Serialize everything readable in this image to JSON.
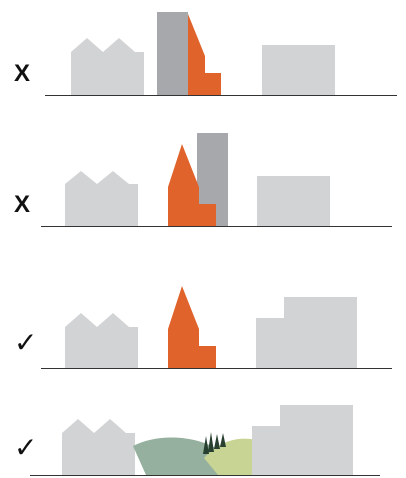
{
  "rows": [
    {
      "verdict": "X"
    },
    {
      "verdict": "X"
    },
    {
      "verdict": "✓"
    },
    {
      "verdict": "✓"
    }
  ],
  "colors": {
    "building_grey": "#d2d3d5",
    "tower_grey": "#a6a8ab",
    "church_orange": "#e0632c",
    "hill_green": "#95b09e",
    "hill_light": "#c7d494",
    "tree_dark": "#27402f",
    "ground_line": "#333333"
  }
}
